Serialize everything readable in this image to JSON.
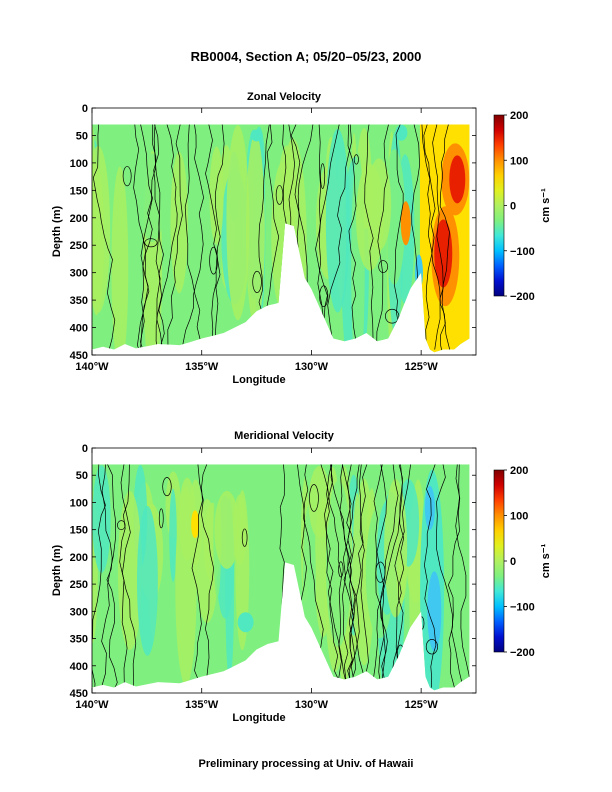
{
  "figure": {
    "title": "RB0004, Section A; 05/20–05/23, 2000",
    "footer": "Preliminary processing at Univ. of Hawaii"
  },
  "palette": {
    "colorbar_stops": [
      "#00007f",
      "#0010d0",
      "#0060ff",
      "#00c0ff",
      "#40e8d8",
      "#7ff07f",
      "#b0f060",
      "#e0f020",
      "#ffd000",
      "#ff9000",
      "#ff4000",
      "#d00000",
      "#800000"
    ],
    "section_base": "#7ff07f",
    "section_green": "#a8f060",
    "section_cyan": "#50e8c0",
    "section_yellow": "#ffe000",
    "section_orange": "#ff9000",
    "section_red": "#e82000",
    "section_blue": "#40c8f0"
  },
  "chart_data": [
    {
      "type": "heatmap",
      "title": "Zonal Velocity",
      "xlabel": "Longitude",
      "ylabel": "Depth (m)",
      "xlim": [
        -140,
        -122.5
      ],
      "ylim": [
        450,
        0
      ],
      "x_tick_values": [
        -140,
        -135,
        -130,
        -125
      ],
      "x_tick_labels": [
        "140°W",
        "135°W",
        "130°W",
        "125°W"
      ],
      "y_tick_values": [
        0,
        50,
        100,
        150,
        200,
        250,
        300,
        350,
        400,
        450
      ],
      "y_tick_labels": [
        "0",
        "50",
        "100",
        "150",
        "200",
        "250",
        "300",
        "350",
        "400",
        "450"
      ],
      "data_top_depth": 30,
      "colorbar": {
        "label": "cm s⁻¹",
        "range": [
          -200,
          200
        ],
        "tick_values": [
          200,
          100,
          0,
          -100,
          -200
        ],
        "tick_labels": [
          "200",
          "100",
          "0",
          "−100",
          "−200"
        ]
      },
      "features": [
        {
          "kind": "jet",
          "description": "strong eastward flow",
          "lon_range": [
            -124.6,
            -123.2
          ],
          "depth_range": [
            30,
            420
          ],
          "max_value": 150
        }
      ],
      "bottom_profile": {
        "lon": [
          -140,
          -139.5,
          -139,
          -138.5,
          -138,
          -137,
          -136,
          -135,
          -134,
          -133,
          -132.5,
          -132,
          -131.5,
          -131.2,
          -130.8,
          -130.3,
          -130,
          -129,
          -128.5,
          -128,
          -127.5,
          -127,
          -126.5,
          -126,
          -125.5,
          -125,
          -124.8,
          -124.6,
          -124.4,
          -124,
          -123.5,
          -123.2,
          -122.8
        ],
        "depth": [
          440,
          435,
          440,
          430,
          438,
          430,
          432,
          420,
          410,
          390,
          370,
          360,
          355,
          210,
          215,
          310,
          330,
          420,
          425,
          420,
          410,
          425,
          420,
          380,
          330,
          300,
          420,
          440,
          445,
          440,
          440,
          430,
          420
        ]
      }
    },
    {
      "type": "heatmap",
      "title": "Meridional Velocity",
      "xlabel": "Longitude",
      "ylabel": "Depth (m)",
      "xlim": [
        -140,
        -122.5
      ],
      "ylim": [
        450,
        0
      ],
      "x_tick_values": [
        -140,
        -135,
        -130,
        -125
      ],
      "x_tick_labels": [
        "140°W",
        "135°W",
        "130°W",
        "125°W"
      ],
      "y_tick_values": [
        0,
        50,
        100,
        150,
        200,
        250,
        300,
        350,
        400,
        450
      ],
      "y_tick_labels": [
        "0",
        "50",
        "100",
        "150",
        "200",
        "250",
        "300",
        "350",
        "400",
        "450"
      ],
      "data_top_depth": 30,
      "colorbar": {
        "label": "cm s⁻¹",
        "range": [
          -200,
          200
        ],
        "tick_values": [
          200,
          100,
          0,
          -100,
          -200
        ],
        "tick_labels": [
          "200",
          "100",
          "0",
          "−100",
          "−200"
        ]
      },
      "features": [
        {
          "kind": "weak-southward",
          "lon_range": [
            -125.2,
            -124.0
          ],
          "depth_range": [
            80,
            420
          ],
          "min_value": -40
        }
      ],
      "bottom_profile": {
        "lon": [
          -140,
          -139.5,
          -139,
          -138.5,
          -138,
          -137,
          -136,
          -135,
          -134,
          -133,
          -132.5,
          -132,
          -131.5,
          -131.2,
          -130.8,
          -130.3,
          -130,
          -129,
          -128.5,
          -128,
          -127.5,
          -127,
          -126.5,
          -126,
          -125.5,
          -125,
          -124.8,
          -124.6,
          -124.4,
          -124,
          -123.5,
          -123.2,
          -122.8
        ],
        "depth": [
          440,
          435,
          440,
          430,
          438,
          430,
          432,
          420,
          410,
          390,
          370,
          360,
          355,
          210,
          215,
          310,
          330,
          420,
          425,
          420,
          410,
          425,
          420,
          380,
          330,
          300,
          420,
          440,
          445,
          440,
          440,
          430,
          420
        ]
      }
    }
  ]
}
